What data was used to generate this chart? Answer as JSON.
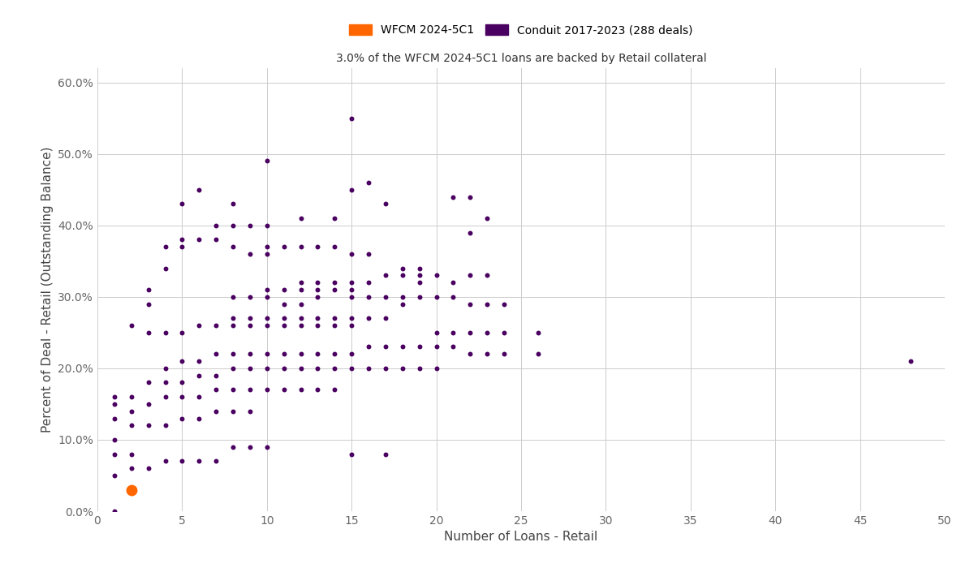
{
  "title": "3.0% of the WFCM 2024-5C1 loans are backed by Retail collateral",
  "xlabel": "Number of Loans - Retail",
  "ylabel": "Percent of Deal - Retail (Outstanding Balance)",
  "xlim": [
    0,
    50
  ],
  "ylim": [
    0.0,
    0.62
  ],
  "yticks": [
    0.0,
    0.1,
    0.2,
    0.3,
    0.4,
    0.5,
    0.6
  ],
  "ytick_labels": [
    "0.0%",
    "10.0%",
    "20.0%",
    "30.0%",
    "40.0%",
    "50.0%",
    "60.0%"
  ],
  "xticks": [
    0,
    5,
    10,
    15,
    20,
    25,
    30,
    35,
    40,
    45,
    50
  ],
  "background_color": "#ffffff",
  "grid_color": "#cccccc",
  "conduit_color": "#4a0060",
  "wfcm_color": "#ff6600",
  "legend_label_wfcm": "WFCM 2024-5C1",
  "legend_label_conduit": "Conduit 2017-2023 (288 deals)",
  "wfcm_point": [
    2,
    0.03
  ],
  "wfcm_size": 100,
  "conduit_size": 18,
  "conduit_points": [
    [
      1,
      0.0
    ],
    [
      1,
      0.05
    ],
    [
      1,
      0.08
    ],
    [
      1,
      0.1
    ],
    [
      1,
      0.13
    ],
    [
      1,
      0.15
    ],
    [
      1,
      0.16
    ],
    [
      2,
      0.06
    ],
    [
      2,
      0.08
    ],
    [
      2,
      0.12
    ],
    [
      2,
      0.14
    ],
    [
      2,
      0.16
    ],
    [
      2,
      0.26
    ],
    [
      3,
      0.06
    ],
    [
      3,
      0.12
    ],
    [
      3,
      0.15
    ],
    [
      3,
      0.18
    ],
    [
      3,
      0.25
    ],
    [
      3,
      0.29
    ],
    [
      3,
      0.31
    ],
    [
      4,
      0.07
    ],
    [
      4,
      0.12
    ],
    [
      4,
      0.16
    ],
    [
      4,
      0.18
    ],
    [
      4,
      0.2
    ],
    [
      4,
      0.25
    ],
    [
      4,
      0.34
    ],
    [
      4,
      0.37
    ],
    [
      5,
      0.07
    ],
    [
      5,
      0.13
    ],
    [
      5,
      0.16
    ],
    [
      5,
      0.18
    ],
    [
      5,
      0.21
    ],
    [
      5,
      0.25
    ],
    [
      5,
      0.37
    ],
    [
      5,
      0.38
    ],
    [
      5,
      0.43
    ],
    [
      6,
      0.07
    ],
    [
      6,
      0.13
    ],
    [
      6,
      0.16
    ],
    [
      6,
      0.19
    ],
    [
      6,
      0.21
    ],
    [
      6,
      0.26
    ],
    [
      6,
      0.38
    ],
    [
      6,
      0.45
    ],
    [
      7,
      0.07
    ],
    [
      7,
      0.14
    ],
    [
      7,
      0.17
    ],
    [
      7,
      0.19
    ],
    [
      7,
      0.22
    ],
    [
      7,
      0.26
    ],
    [
      7,
      0.38
    ],
    [
      7,
      0.4
    ],
    [
      8,
      0.09
    ],
    [
      8,
      0.14
    ],
    [
      8,
      0.17
    ],
    [
      8,
      0.2
    ],
    [
      8,
      0.22
    ],
    [
      8,
      0.26
    ],
    [
      8,
      0.27
    ],
    [
      8,
      0.3
    ],
    [
      8,
      0.37
    ],
    [
      8,
      0.4
    ],
    [
      8,
      0.43
    ],
    [
      9,
      0.09
    ],
    [
      9,
      0.14
    ],
    [
      9,
      0.17
    ],
    [
      9,
      0.2
    ],
    [
      9,
      0.22
    ],
    [
      9,
      0.26
    ],
    [
      9,
      0.27
    ],
    [
      9,
      0.3
    ],
    [
      9,
      0.36
    ],
    [
      9,
      0.4
    ],
    [
      10,
      0.09
    ],
    [
      10,
      0.17
    ],
    [
      10,
      0.2
    ],
    [
      10,
      0.22
    ],
    [
      10,
      0.26
    ],
    [
      10,
      0.27
    ],
    [
      10,
      0.3
    ],
    [
      10,
      0.31
    ],
    [
      10,
      0.36
    ],
    [
      10,
      0.37
    ],
    [
      10,
      0.4
    ],
    [
      10,
      0.49
    ],
    [
      11,
      0.17
    ],
    [
      11,
      0.2
    ],
    [
      11,
      0.22
    ],
    [
      11,
      0.26
    ],
    [
      11,
      0.27
    ],
    [
      11,
      0.29
    ],
    [
      11,
      0.31
    ],
    [
      11,
      0.37
    ],
    [
      12,
      0.17
    ],
    [
      12,
      0.2
    ],
    [
      12,
      0.22
    ],
    [
      12,
      0.26
    ],
    [
      12,
      0.27
    ],
    [
      12,
      0.29
    ],
    [
      12,
      0.31
    ],
    [
      12,
      0.32
    ],
    [
      12,
      0.37
    ],
    [
      12,
      0.41
    ],
    [
      13,
      0.17
    ],
    [
      13,
      0.2
    ],
    [
      13,
      0.22
    ],
    [
      13,
      0.26
    ],
    [
      13,
      0.27
    ],
    [
      13,
      0.3
    ],
    [
      13,
      0.31
    ],
    [
      13,
      0.32
    ],
    [
      13,
      0.37
    ],
    [
      14,
      0.17
    ],
    [
      14,
      0.2
    ],
    [
      14,
      0.22
    ],
    [
      14,
      0.26
    ],
    [
      14,
      0.27
    ],
    [
      14,
      0.31
    ],
    [
      14,
      0.32
    ],
    [
      14,
      0.37
    ],
    [
      14,
      0.41
    ],
    [
      15,
      0.08
    ],
    [
      15,
      0.2
    ],
    [
      15,
      0.22
    ],
    [
      15,
      0.26
    ],
    [
      15,
      0.27
    ],
    [
      15,
      0.3
    ],
    [
      15,
      0.31
    ],
    [
      15,
      0.32
    ],
    [
      15,
      0.36
    ],
    [
      15,
      0.45
    ],
    [
      15,
      0.55
    ],
    [
      16,
      0.2
    ],
    [
      16,
      0.23
    ],
    [
      16,
      0.27
    ],
    [
      16,
      0.3
    ],
    [
      16,
      0.32
    ],
    [
      16,
      0.36
    ],
    [
      16,
      0.46
    ],
    [
      17,
      0.08
    ],
    [
      17,
      0.2
    ],
    [
      17,
      0.23
    ],
    [
      17,
      0.27
    ],
    [
      17,
      0.3
    ],
    [
      17,
      0.33
    ],
    [
      17,
      0.43
    ],
    [
      18,
      0.2
    ],
    [
      18,
      0.23
    ],
    [
      18,
      0.29
    ],
    [
      18,
      0.3
    ],
    [
      18,
      0.33
    ],
    [
      18,
      0.34
    ],
    [
      19,
      0.2
    ],
    [
      19,
      0.23
    ],
    [
      19,
      0.3
    ],
    [
      19,
      0.32
    ],
    [
      19,
      0.33
    ],
    [
      19,
      0.34
    ],
    [
      20,
      0.2
    ],
    [
      20,
      0.23
    ],
    [
      20,
      0.25
    ],
    [
      20,
      0.3
    ],
    [
      20,
      0.33
    ],
    [
      21,
      0.23
    ],
    [
      21,
      0.25
    ],
    [
      21,
      0.3
    ],
    [
      21,
      0.32
    ],
    [
      21,
      0.44
    ],
    [
      22,
      0.22
    ],
    [
      22,
      0.25
    ],
    [
      22,
      0.29
    ],
    [
      22,
      0.33
    ],
    [
      22,
      0.39
    ],
    [
      22,
      0.44
    ],
    [
      23,
      0.22
    ],
    [
      23,
      0.25
    ],
    [
      23,
      0.29
    ],
    [
      23,
      0.33
    ],
    [
      23,
      0.41
    ],
    [
      24,
      0.22
    ],
    [
      24,
      0.25
    ],
    [
      24,
      0.29
    ],
    [
      26,
      0.22
    ],
    [
      26,
      0.25
    ],
    [
      48,
      0.21
    ]
  ]
}
